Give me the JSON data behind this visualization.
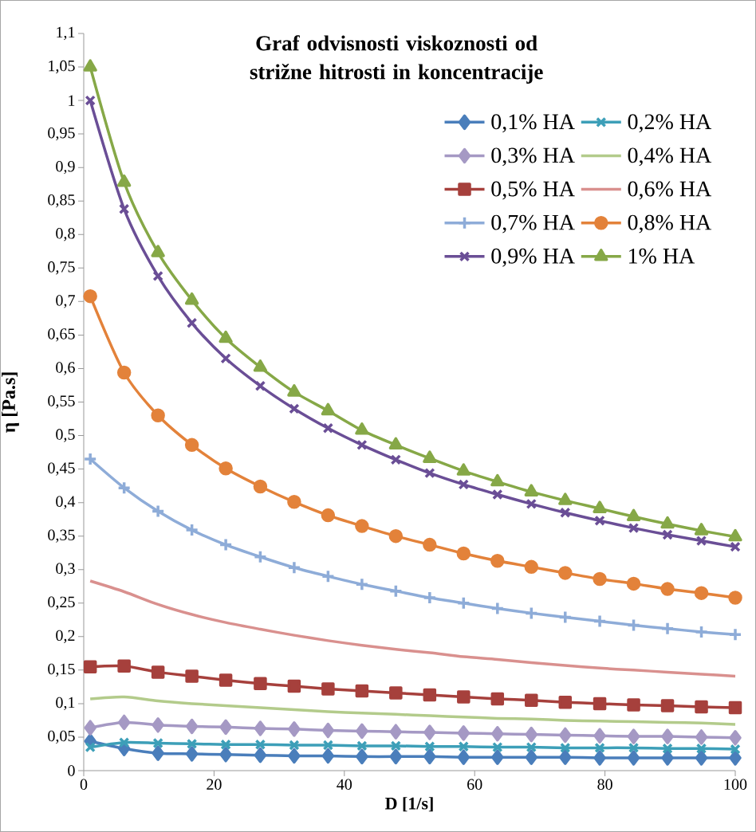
{
  "chart_data": {
    "type": "line",
    "title": "Graf odvisnosti viskoznosti od strižne hitrosti in koncentracije",
    "xlabel": "D [1/s]",
    "ylabel": "η [Pa.s]",
    "x": [
      1,
      6.2,
      11.4,
      16.6,
      21.8,
      27.1,
      32.3,
      37.5,
      42.7,
      47.9,
      53.1,
      58.3,
      63.5,
      68.7,
      73.9,
      79.2,
      84.4,
      89.6,
      94.8,
      100
    ],
    "xlim": [
      0,
      100
    ],
    "xticks": [
      0,
      20,
      40,
      60,
      80,
      100
    ],
    "ylim": [
      0,
      1.1
    ],
    "yticks": [
      {
        "value": 0,
        "label": "0"
      },
      {
        "value": 0.05,
        "label": "0,05"
      },
      {
        "value": 0.1,
        "label": "0,1"
      },
      {
        "value": 0.15,
        "label": "0,15"
      },
      {
        "value": 0.2,
        "label": "0,2"
      },
      {
        "value": 0.25,
        "label": "0,25"
      },
      {
        "value": 0.3,
        "label": "0,3"
      },
      {
        "value": 0.35,
        "label": "0,35"
      },
      {
        "value": 0.4,
        "label": "0,4"
      },
      {
        "value": 0.45,
        "label": "0,45"
      },
      {
        "value": 0.5,
        "label": "0,5"
      },
      {
        "value": 0.55,
        "label": "0,55"
      },
      {
        "value": 0.6,
        "label": "0,6"
      },
      {
        "value": 0.65,
        "label": "0,65"
      },
      {
        "value": 0.7,
        "label": "0,7"
      },
      {
        "value": 0.75,
        "label": "0,75"
      },
      {
        "value": 0.8,
        "label": "0,8"
      },
      {
        "value": 0.85,
        "label": "0,85"
      },
      {
        "value": 0.9,
        "label": "0,9"
      },
      {
        "value": 0.95,
        "label": "0,95"
      },
      {
        "value": 1,
        "label": "1"
      },
      {
        "value": 1.05,
        "label": "1,05"
      },
      {
        "value": 1.1,
        "label": "1,1"
      }
    ],
    "grid": false,
    "legend": "top right",
    "series": [
      {
        "name": "0,1% HA",
        "color": "#4a7ebb",
        "marker": "diamond",
        "values": [
          0.044,
          0.033,
          0.026,
          0.025,
          0.024,
          0.023,
          0.022,
          0.022,
          0.021,
          0.021,
          0.021,
          0.02,
          0.02,
          0.02,
          0.02,
          0.019,
          0.019,
          0.019,
          0.019,
          0.019
        ]
      },
      {
        "name": "0,2% HA",
        "color": "#3d9fb8",
        "marker": "cross",
        "values": [
          0.035,
          0.042,
          0.041,
          0.04,
          0.039,
          0.039,
          0.038,
          0.038,
          0.037,
          0.037,
          0.036,
          0.036,
          0.035,
          0.035,
          0.034,
          0.034,
          0.034,
          0.033,
          0.033,
          0.032
        ]
      },
      {
        "name": "0,3% HA",
        "color": "#a599c4",
        "marker": "diamond",
        "values": [
          0.064,
          0.072,
          0.068,
          0.066,
          0.065,
          0.063,
          0.062,
          0.06,
          0.059,
          0.058,
          0.057,
          0.056,
          0.055,
          0.054,
          0.053,
          0.052,
          0.051,
          0.051,
          0.05,
          0.049
        ]
      },
      {
        "name": "0,4% HA",
        "color": "#b3cb8b",
        "marker": "none",
        "values": [
          0.107,
          0.11,
          0.104,
          0.1,
          0.097,
          0.094,
          0.091,
          0.088,
          0.086,
          0.084,
          0.082,
          0.08,
          0.078,
          0.077,
          0.075,
          0.074,
          0.073,
          0.072,
          0.071,
          0.069
        ]
      },
      {
        "name": "0,5% HA",
        "color": "#a6403c",
        "marker": "square",
        "values": [
          0.155,
          0.156,
          0.147,
          0.141,
          0.135,
          0.13,
          0.126,
          0.122,
          0.119,
          0.116,
          0.113,
          0.11,
          0.107,
          0.105,
          0.102,
          0.1,
          0.098,
          0.097,
          0.095,
          0.094
        ]
      },
      {
        "name": "0,6% HA",
        "color": "#d9908e",
        "marker": "none",
        "values": [
          0.283,
          0.267,
          0.248,
          0.233,
          0.221,
          0.211,
          0.202,
          0.194,
          0.187,
          0.181,
          0.176,
          0.17,
          0.166,
          0.161,
          0.157,
          0.153,
          0.15,
          0.147,
          0.144,
          0.141
        ]
      },
      {
        "name": "0,7% HA",
        "color": "#8eacd8",
        "marker": "plus",
        "values": [
          0.465,
          0.422,
          0.387,
          0.359,
          0.337,
          0.319,
          0.303,
          0.29,
          0.278,
          0.268,
          0.258,
          0.25,
          0.242,
          0.235,
          0.229,
          0.223,
          0.217,
          0.212,
          0.207,
          0.203
        ]
      },
      {
        "name": "0,8% HA",
        "color": "#e3823a",
        "marker": "circle",
        "values": [
          0.708,
          0.594,
          0.53,
          0.486,
          0.451,
          0.424,
          0.401,
          0.381,
          0.365,
          0.35,
          0.337,
          0.324,
          0.313,
          0.304,
          0.295,
          0.286,
          0.279,
          0.271,
          0.265,
          0.258
        ]
      },
      {
        "name": "0,9% HA",
        "color": "#6a4e96",
        "marker": "cross",
        "values": [
          1.0,
          0.838,
          0.738,
          0.668,
          0.615,
          0.574,
          0.54,
          0.511,
          0.486,
          0.464,
          0.444,
          0.427,
          0.412,
          0.398,
          0.385,
          0.373,
          0.362,
          0.352,
          0.343,
          0.334
        ]
      },
      {
        "name": "1% HA",
        "color": "#86a847",
        "marker": "triangle",
        "values": [
          1.05,
          0.878,
          0.773,
          0.702,
          0.645,
          0.602,
          0.565,
          0.537,
          0.508,
          0.486,
          0.466,
          0.447,
          0.431,
          0.416,
          0.403,
          0.391,
          0.379,
          0.368,
          0.358,
          0.349
        ]
      }
    ]
  }
}
